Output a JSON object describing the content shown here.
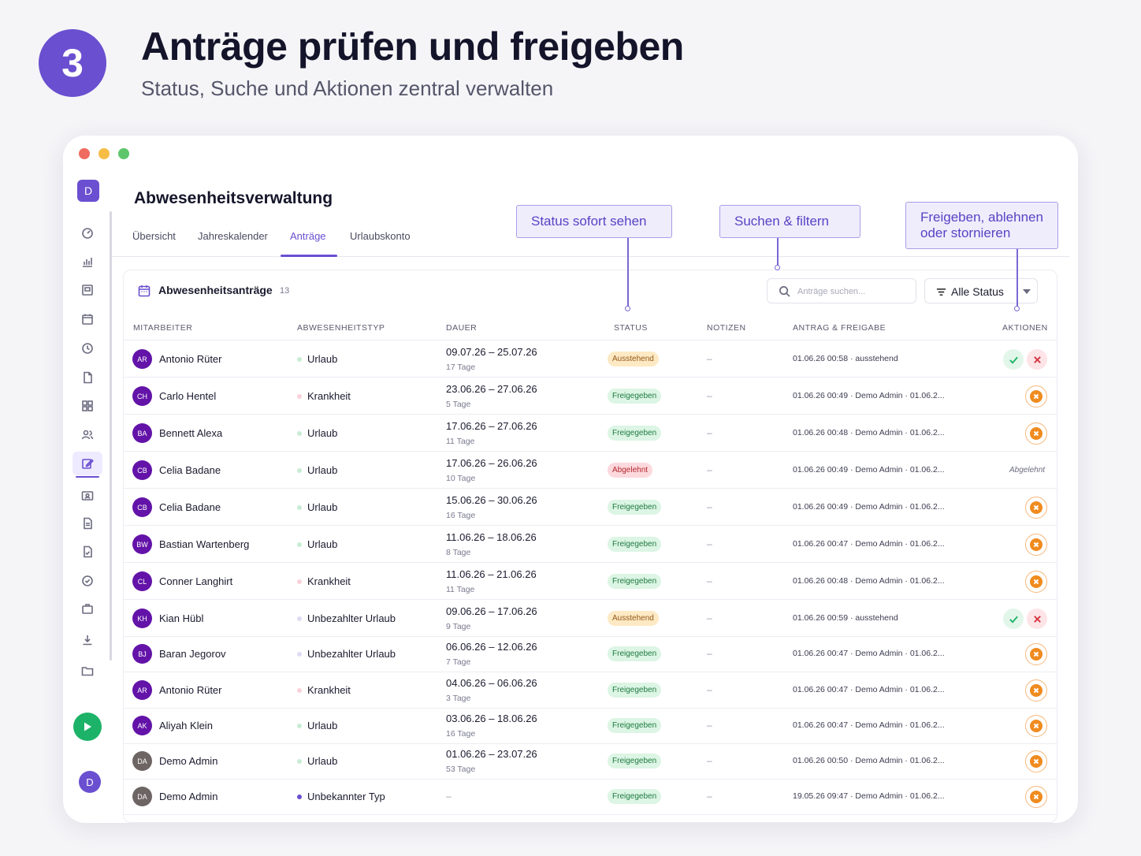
{
  "hero": {
    "step": "3",
    "title": "Anträge prüfen und freigeben",
    "subtitle": "Status, Suche und Aktionen zentral verwalten"
  },
  "sidebar": {
    "logo": "D",
    "icons": [
      "dashboard-icon",
      "bar-chart-icon",
      "grid-board-icon",
      "calendar-icon",
      "clock-icon",
      "document-icon",
      "apps-grid-icon",
      "users-icon",
      "edit-icon",
      "id-card-icon",
      "file-text-icon",
      "file-check-icon",
      "check-circle-icon",
      "briefcase-icon",
      "download-icon",
      "folder-icon"
    ],
    "active_index": 8,
    "user_avatar": "D"
  },
  "app": {
    "title": "Abwesenheitsverwaltung",
    "tabs": [
      "Übersicht",
      "Jahreskalender",
      "Anträge",
      "Urlaubskonto"
    ],
    "active_tab": 2
  },
  "card": {
    "title": "Abwesenheitsanträge",
    "count": "13",
    "search_placeholder": "Anträge suchen...",
    "filter_label": "Alle Status"
  },
  "table": {
    "columns": [
      "MITARBEITER",
      "ABWESENHEITSTYP",
      "DAUER",
      "STATUS",
      "NOTIZEN",
      "ANTRAG & FREIGABE",
      "AKTIONEN"
    ],
    "rows": [
      {
        "initials": "AR",
        "name": "Antonio Rüter",
        "type": "Urlaub",
        "type_kind": "vacation",
        "range": "09.07.26 – 25.07.26",
        "days": "17 Tage",
        "status": "Ausstehend",
        "status_kind": "pending",
        "notes": "–",
        "request": "01.06.26 00:58 · ausstehend",
        "action": "approve-reject"
      },
      {
        "initials": "CH",
        "name": "Carlo Hentel",
        "type": "Krankheit",
        "type_kind": "sick",
        "range": "23.06.26 – 27.06.26",
        "days": "5 Tage",
        "status": "Freigegeben",
        "status_kind": "approved",
        "notes": "–",
        "request": "01.06.26 00:49 · Demo Admin · 01.06.2...",
        "action": "cancel"
      },
      {
        "initials": "BA",
        "name": "Bennett Alexa",
        "type": "Urlaub",
        "type_kind": "vacation",
        "range": "17.06.26 – 27.06.26",
        "days": "11 Tage",
        "status": "Freigegeben",
        "status_kind": "approved",
        "notes": "–",
        "request": "01.06.26 00:48 · Demo Admin · 01.06.2...",
        "action": "cancel"
      },
      {
        "initials": "CB",
        "name": "Celia Badane",
        "type": "Urlaub",
        "type_kind": "vacation",
        "range": "17.06.26 – 26.06.26",
        "days": "10 Tage",
        "status": "Abgelehnt",
        "status_kind": "rejected",
        "notes": "–",
        "request": "01.06.26 00:49 · Demo Admin · 01.06.2...",
        "action": "label",
        "action_label": "Abgelehnt"
      },
      {
        "initials": "CB",
        "name": "Celia Badane",
        "type": "Urlaub",
        "type_kind": "vacation",
        "range": "15.06.26 – 30.06.26",
        "days": "16 Tage",
        "status": "Freigegeben",
        "status_kind": "approved",
        "notes": "–",
        "request": "01.06.26 00:49 · Demo Admin · 01.06.2...",
        "action": "cancel"
      },
      {
        "initials": "BW",
        "name": "Bastian Wartenberg",
        "type": "Urlaub",
        "type_kind": "vacation",
        "range": "11.06.26 – 18.06.26",
        "days": "8 Tage",
        "status": "Freigegeben",
        "status_kind": "approved",
        "notes": "–",
        "request": "01.06.26 00:47 · Demo Admin · 01.06.2...",
        "action": "cancel"
      },
      {
        "initials": "CL",
        "name": "Conner Langhirt",
        "type": "Krankheit",
        "type_kind": "sick",
        "range": "11.06.26 – 21.06.26",
        "days": "11 Tage",
        "status": "Freigegeben",
        "status_kind": "approved",
        "notes": "–",
        "request": "01.06.26 00:48 · Demo Admin · 01.06.2...",
        "action": "cancel"
      },
      {
        "initials": "KH",
        "name": "Kian Hübl",
        "type": "Unbezahlter Urlaub",
        "type_kind": "unpaid",
        "range": "09.06.26 – 17.06.26",
        "days": "9 Tage",
        "status": "Ausstehend",
        "status_kind": "pending",
        "notes": "–",
        "request": "01.06.26 00:59 · ausstehend",
        "action": "approve-reject"
      },
      {
        "initials": "BJ",
        "name": "Baran Jegorov",
        "type": "Unbezahlter Urlaub",
        "type_kind": "unpaid",
        "range": "06.06.26 – 12.06.26",
        "days": "7 Tage",
        "status": "Freigegeben",
        "status_kind": "approved",
        "notes": "–",
        "request": "01.06.26 00:47 · Demo Admin · 01.06.2...",
        "action": "cancel"
      },
      {
        "initials": "AR",
        "name": "Antonio Rüter",
        "type": "Krankheit",
        "type_kind": "sick",
        "range": "04.06.26 – 06.06.26",
        "days": "3 Tage",
        "status": "Freigegeben",
        "status_kind": "approved",
        "notes": "–",
        "request": "01.06.26 00:47 · Demo Admin · 01.06.2...",
        "action": "cancel"
      },
      {
        "initials": "AK",
        "name": "Aliyah Klein",
        "type": "Urlaub",
        "type_kind": "vacation",
        "range": "03.06.26 – 18.06.26",
        "days": "16 Tage",
        "status": "Freigegeben",
        "status_kind": "approved",
        "notes": "–",
        "request": "01.06.26 00:47 · Demo Admin · 01.06.2...",
        "action": "cancel"
      },
      {
        "initials": "DA",
        "name": "Demo Admin",
        "type": "Urlaub",
        "type_kind": "vacation",
        "range": "01.06.26 – 23.07.26",
        "days": "53 Tage",
        "status": "Freigegeben",
        "status_kind": "approved",
        "notes": "–",
        "request": "01.06.26 00:50 · Demo Admin · 01.06.2...",
        "action": "cancel",
        "avatar_kind": "grey"
      },
      {
        "initials": "DA",
        "name": "Demo Admin",
        "type": "Unbekannter Typ",
        "type_kind": "unknown",
        "range": "–",
        "days": "",
        "status": "Freigegeben",
        "status_kind": "approved",
        "notes": "–",
        "request": "19.05.26 09:47 · Demo Admin · 01.06.2...",
        "action": "cancel",
        "avatar_kind": "grey"
      }
    ]
  },
  "callouts": [
    {
      "id": "status",
      "text": "Status sofort sehen"
    },
    {
      "id": "search",
      "text": "Suchen & filtern"
    },
    {
      "id": "actions",
      "text": "Freigeben, ablehnen oder stornieren"
    }
  ],
  "colors": {
    "accent": "#6a4fd0",
    "approved_bg": "#dcf5e4",
    "pending_bg": "#fde9c3",
    "rejected_bg": "#fcd9dd",
    "cancel_orange": "#f08b1f",
    "play_green": "#1cb368"
  }
}
